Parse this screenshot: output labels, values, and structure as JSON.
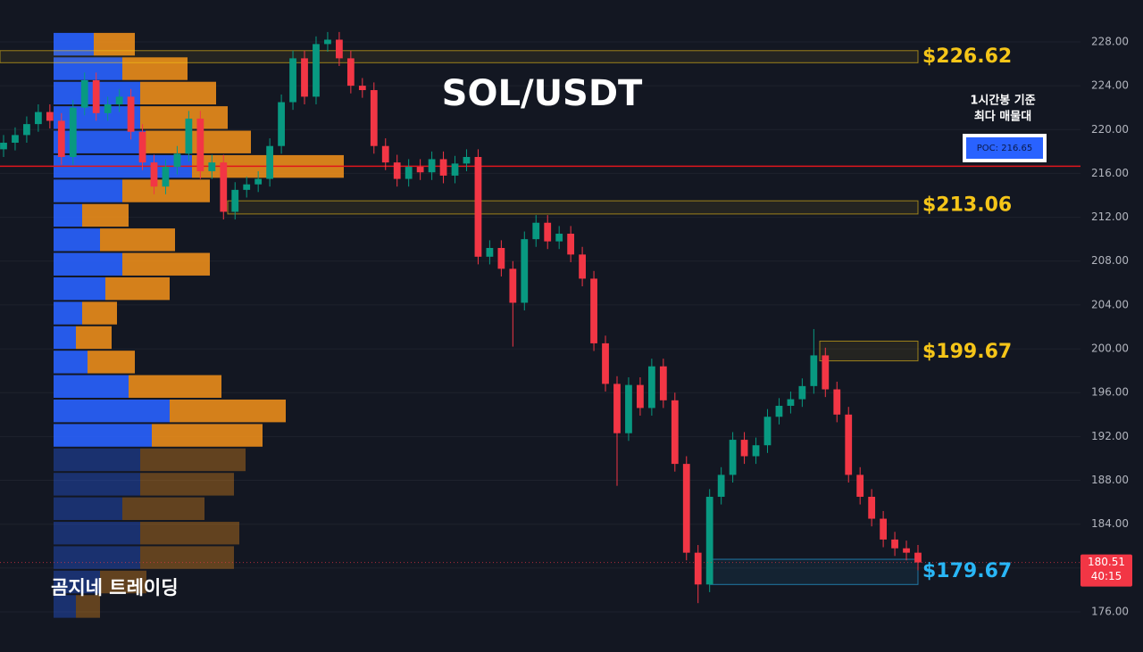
{
  "chart_data": {
    "type": "candlestick",
    "title": "SOL/USDT",
    "up_color": "#089981",
    "down_color": "#f23645",
    "ylim": [
      172.34,
      231.82
    ],
    "yticks": [
      {
        "value": 176,
        "label": "176.00"
      },
      {
        "value": 180,
        "label": "180.00"
      },
      {
        "value": 184,
        "label": "184.00"
      },
      {
        "value": 188,
        "label": "188.00"
      },
      {
        "value": 192,
        "label": "192.00"
      },
      {
        "value": 196,
        "label": "196.00"
      },
      {
        "value": 200,
        "label": "200.00"
      },
      {
        "value": 204,
        "label": "204.00"
      },
      {
        "value": 208,
        "label": "208.00"
      },
      {
        "value": 212,
        "label": "212.00"
      },
      {
        "value": 216,
        "label": "216.00"
      },
      {
        "value": 220,
        "label": "220.00"
      },
      {
        "value": 224,
        "label": "224.00"
      },
      {
        "value": 228,
        "label": "228.00"
      }
    ],
    "grid": true,
    "open": [
      218.2,
      218.8,
      219.5,
      220.5,
      221.6,
      220.8,
      217.5,
      222.0,
      224.5,
      221.5,
      222.3,
      223.0,
      219.8,
      217.0,
      214.8,
      216.6,
      217.8,
      221.0,
      216.2,
      217.0,
      212.5,
      214.5,
      215.0,
      215.5,
      218.5,
      222.5,
      226.5,
      223.0,
      227.8,
      228.2,
      226.5,
      224.0,
      223.6,
      218.5,
      217.0,
      215.5,
      216.6,
      216.1,
      217.3,
      215.8,
      216.9,
      217.5,
      208.4,
      209.2,
      207.3,
      204.2,
      210.0,
      211.5,
      209.8,
      210.5,
      208.6,
      206.4,
      200.5,
      196.8,
      192.3,
      196.7,
      194.6,
      198.4,
      195.3,
      189.5,
      181.4,
      178.5,
      186.5,
      188.5,
      191.7,
      190.2,
      191.2,
      193.8,
      194.8,
      195.4,
      196.6,
      199.4,
      196.3,
      194.0,
      188.5,
      186.5,
      184.5,
      182.6,
      181.8,
      181.4
    ],
    "high": [
      219.5,
      220.2,
      221.2,
      222.3,
      222.3,
      221.5,
      222.7,
      225.2,
      225.2,
      223.0,
      223.7,
      223.7,
      220.5,
      217.7,
      217.3,
      218.5,
      221.7,
      221.7,
      217.7,
      217.7,
      215.2,
      215.7,
      216.2,
      219.2,
      223.2,
      227.2,
      227.2,
      228.5,
      228.9,
      228.9,
      227.2,
      224.7,
      224.3,
      219.2,
      217.7,
      217.3,
      217.3,
      218.0,
      218.0,
      217.6,
      218.2,
      218.2,
      209.9,
      209.9,
      208.0,
      210.7,
      212.2,
      212.2,
      211.2,
      211.2,
      209.3,
      207.1,
      201.2,
      197.5,
      197.4,
      197.4,
      199.1,
      199.1,
      196.0,
      190.2,
      182.1,
      187.2,
      189.2,
      192.4,
      192.4,
      191.9,
      194.5,
      195.5,
      196.1,
      197.3,
      201.8,
      200.1,
      197.0,
      194.7,
      189.2,
      187.2,
      185.2,
      183.3,
      182.5,
      182.1
    ],
    "low": [
      217.5,
      218.1,
      218.8,
      219.8,
      220.1,
      216.8,
      216.8,
      221.3,
      220.8,
      220.8,
      221.6,
      219.1,
      216.3,
      214.1,
      214.1,
      215.9,
      217.1,
      215.5,
      215.5,
      211.8,
      211.8,
      213.8,
      214.3,
      214.8,
      217.8,
      221.8,
      222.3,
      222.3,
      227.1,
      225.8,
      223.3,
      222.9,
      217.8,
      216.3,
      214.8,
      214.8,
      215.4,
      215.4,
      215.1,
      215.1,
      216.2,
      207.7,
      207.7,
      206.6,
      200.2,
      203.5,
      209.3,
      209.1,
      209.1,
      207.9,
      205.7,
      199.8,
      196.1,
      187.5,
      191.6,
      193.9,
      193.9,
      194.6,
      188.8,
      180.7,
      176.8,
      177.8,
      185.8,
      187.8,
      189.5,
      189.5,
      190.5,
      193.1,
      194.1,
      194.7,
      195.9,
      195.6,
      193.3,
      187.8,
      185.8,
      183.8,
      181.9,
      181.1,
      180.7,
      179.8
    ],
    "close": [
      218.8,
      219.5,
      220.5,
      221.6,
      220.8,
      217.5,
      222.0,
      224.5,
      221.5,
      222.3,
      223.0,
      219.8,
      217.0,
      214.8,
      216.6,
      217.8,
      221.0,
      216.2,
      217.0,
      212.5,
      214.5,
      215.0,
      215.5,
      218.5,
      222.5,
      226.5,
      223.0,
      227.8,
      228.2,
      226.5,
      224.0,
      223.6,
      218.5,
      217.0,
      215.5,
      216.6,
      216.1,
      217.3,
      215.8,
      216.9,
      217.5,
      208.4,
      209.2,
      207.3,
      204.2,
      210.0,
      211.5,
      209.8,
      210.5,
      208.6,
      206.4,
      200.5,
      196.8,
      192.3,
      196.7,
      194.6,
      198.4,
      195.3,
      189.5,
      181.4,
      178.5,
      186.5,
      188.5,
      191.7,
      190.2,
      191.2,
      193.8,
      194.8,
      195.4,
      196.6,
      199.4,
      196.3,
      194.0,
      188.5,
      186.5,
      184.5,
      182.6,
      181.8,
      181.4,
      180.51
    ],
    "volume_profile": {
      "top": 228.9,
      "row_size": 2.23,
      "value_area_rows": 17,
      "buy_color": "#2962ff",
      "sell_color": "#f7931a",
      "buy": [
        45,
        77,
        97,
        97,
        103,
        155,
        77,
        32,
        52,
        77,
        58,
        32,
        25,
        38,
        84,
        130,
        110,
        97,
        97,
        77,
        97,
        97,
        52,
        25
      ],
      "sell": [
        46,
        73,
        85,
        98,
        118,
        170,
        98,
        52,
        84,
        98,
        72,
        39,
        40,
        53,
        104,
        130,
        124,
        118,
        105,
        92,
        111,
        105,
        52,
        27
      ]
    },
    "levels": [
      {
        "label": "$226.62",
        "value": 226.62,
        "top": 227.2,
        "bottom": 226.1,
        "color": "#f5c518"
      },
      {
        "label": "$213.06",
        "value": 213.06,
        "top": 213.5,
        "bottom": 212.3,
        "color": "#f5c518"
      },
      {
        "label": "$199.67",
        "value": 199.67,
        "top": 200.7,
        "bottom": 198.9,
        "color": "#f5c518"
      },
      {
        "label": "$179.67",
        "value": 179.67,
        "top": 180.8,
        "bottom": 178.5,
        "color": "#29b6f6"
      }
    ],
    "poc": {
      "label": "POC: 216.65",
      "value": 216.65,
      "color": "#e0161c"
    },
    "annotation": [
      "1시간봉 기준",
      "최다 매물대"
    ],
    "watermark": "곰지네 트레이딩",
    "last_price": 180.51,
    "timer": "40:15"
  }
}
